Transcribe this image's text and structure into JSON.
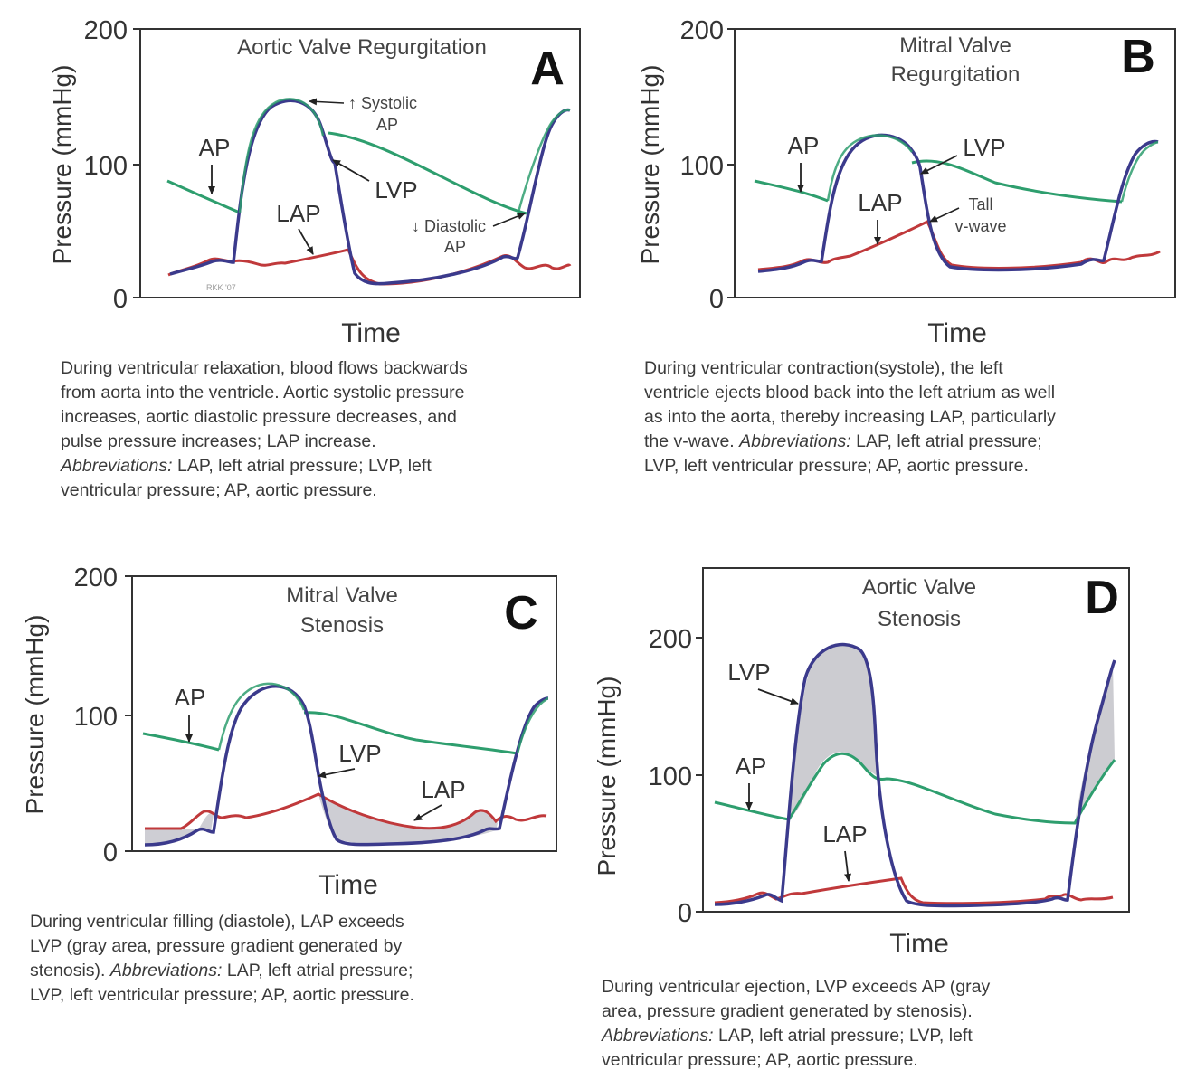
{
  "chart_data": [
    {
      "type": "line",
      "letter": "A",
      "title_lines": [
        "Aortic Valve Regurgitation"
      ],
      "xlabel": "Time",
      "ylabel": "Pressure (mmHg)",
      "ylim": [
        0,
        200
      ],
      "yticks": [
        "0",
        "100",
        "200"
      ],
      "grid": false,
      "series": [
        {
          "name": "AP",
          "color": "#2e9e6e"
        },
        {
          "name": "LVP",
          "color": "#3b3a8c"
        },
        {
          "name": "LAP",
          "color": "#c0393b"
        }
      ],
      "values": {
        "lvp_peak": 148,
        "ap_diastolic_min": 65,
        "ap_start": 88,
        "lap_peak": 37
      },
      "annotations": [
        "AP",
        "LVP",
        "LAP",
        "↑ Systolic",
        "AP",
        "↓ Diastolic",
        "AP"
      ],
      "signature": "RKK '07",
      "caption": [
        "During ventricular relaxation, blood flows backwards",
        "from aorta into the ventricle.  Aortic systolic pressure",
        "increases, aortic diastolic pressure decreases, and",
        "pulse pressure increases; LAP increase."
      ],
      "caption_abbr_label": "Abbreviations:",
      "caption_abbr_rest": " LAP, left atrial pressure; LVP, left",
      "caption_abbr_line2": "ventricular pressure; AP, aortic pressure."
    },
    {
      "type": "line",
      "letter": "B",
      "title_lines": [
        "Mitral Valve",
        "Regurgitation"
      ],
      "xlabel": "Time",
      "ylabel": "Pressure (mmHg)",
      "ylim": [
        0,
        200
      ],
      "yticks": [
        "0",
        "100",
        "200"
      ],
      "grid": false,
      "series": [
        {
          "name": "AP",
          "color": "#2e9e6e"
        },
        {
          "name": "LVP",
          "color": "#3b3a8c"
        },
        {
          "name": "LAP",
          "color": "#c0393b"
        }
      ],
      "values": {
        "lvp_peak": 122,
        "ap_start": 86,
        "lap_v_wave_peak": 58
      },
      "annotations": [
        "AP",
        "LVP",
        "LAP",
        "Tall",
        "v-wave"
      ],
      "caption": [
        "During ventricular contraction(systole), the left",
        "ventricle ejects blood back into the left atrium as well",
        "as into the aorta, thereby increasing LAP, particularly"
      ],
      "caption_mixed_prefix": "the v-wave.  ",
      "caption_abbr_label": "Abbreviations:",
      "caption_abbr_rest": " LAP, left atrial pressure;",
      "caption_last": "LVP, left ventricular pressure; AP, aortic pressure."
    },
    {
      "type": "line",
      "letter": "C",
      "title_lines": [
        "Mitral Valve",
        "Stenosis"
      ],
      "xlabel": "Time",
      "ylabel": "Pressure (mmHg)",
      "ylim": [
        0,
        200
      ],
      "yticks": [
        "0",
        "100",
        "200"
      ],
      "grid": false,
      "series": [
        {
          "name": "AP",
          "color": "#2e9e6e"
        },
        {
          "name": "LVP",
          "color": "#3b3a8c"
        },
        {
          "name": "LAP",
          "color": "#c0393b"
        }
      ],
      "values": {
        "lvp_peak": 122,
        "ap_start": 86,
        "lap_peak": 42
      },
      "annotations": [
        "AP",
        "LVP",
        "LAP"
      ],
      "shaded_area": "LAP exceeds LVP during diastole",
      "caption": [
        "During ventricular filling (diastole), LAP exceeds",
        "LVP (gray area, pressure gradient generated by"
      ],
      "caption_mixed_prefix": "stenosis).  ",
      "caption_abbr_label": "Abbreviations:",
      "caption_abbr_rest": " LAP, left atrial pressure;",
      "caption_last": "LVP, left ventricular pressure; AP, aortic pressure."
    },
    {
      "type": "line",
      "letter": "D",
      "title_lines": [
        "Aortic Valve",
        "Stenosis"
      ],
      "xlabel": "Time",
      "ylabel": "Pressure (mmHg)",
      "ylim": [
        0,
        200
      ],
      "yticks": [
        "0",
        "100",
        "200"
      ],
      "grid": false,
      "series": [
        {
          "name": "AP",
          "color": "#2e9e6e"
        },
        {
          "name": "LVP",
          "color": "#3b3a8c"
        },
        {
          "name": "LAP",
          "color": "#c0393b"
        }
      ],
      "values": {
        "lvp_peak": 193,
        "ap_peak": 115,
        "ap_start": 78,
        "lap_peak": 22
      },
      "annotations": [
        "LVP",
        "AP",
        "LAP"
      ],
      "shaded_area": "LVP exceeds AP during ejection",
      "caption": [
        "During ventricular ejection, LVP exceeds AP (gray",
        "area, pressure gradient generated by stenosis)."
      ],
      "caption_abbr_label": "Abbreviations:",
      "caption_abbr_rest": " LAP, left atrial pressure; LVP, left",
      "caption_last": "ventricular pressure; AP, aortic pressure."
    }
  ],
  "colors": {
    "ap": "#2e9e6e",
    "lvp": "#3b3a8c",
    "lap": "#c0393b",
    "shade": "#c9c9cf",
    "frame": "#333333"
  }
}
